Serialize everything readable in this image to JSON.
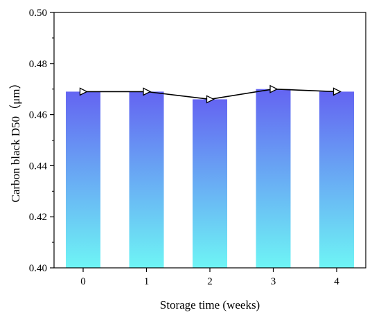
{
  "chart_data": {
    "type": "bar",
    "title": "",
    "xlabel": "Storage time (weeks)",
    "ylabel": "Carbon black D50（μm）",
    "categories": [
      "0",
      "1",
      "2",
      "3",
      "4"
    ],
    "ylim": [
      0.4,
      0.5
    ],
    "yticks": [
      "0.40",
      "0.42",
      "0.44",
      "0.46",
      "0.48",
      "0.50"
    ],
    "grid": false,
    "legend": "none",
    "series": [
      {
        "kind": "bar",
        "values": [
          0.469,
          0.469,
          0.466,
          0.47,
          0.469
        ],
        "gradient_top": "#6464f2",
        "gradient_bottom": "#6ef5f5"
      },
      {
        "kind": "line",
        "values": [
          0.469,
          0.469,
          0.466,
          0.47,
          0.469
        ],
        "color": "#000000",
        "marker": "right-triangle"
      }
    ]
  }
}
